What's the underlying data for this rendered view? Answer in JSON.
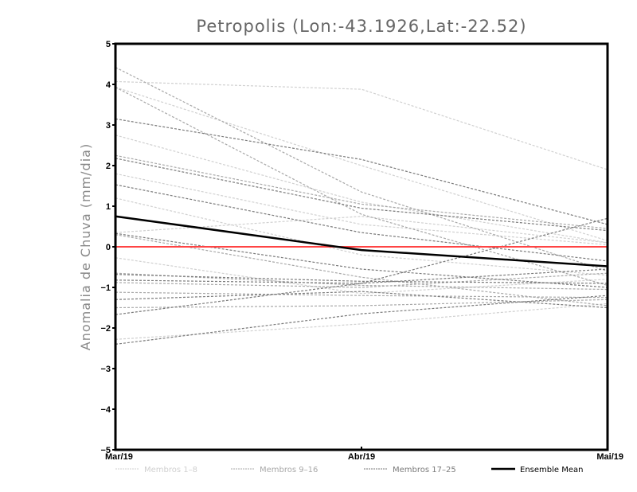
{
  "chart_data": {
    "type": "line",
    "title": "Petropolis (Lon:-43.1926,Lat:-22.52)",
    "xlabel": "",
    "ylabel": "Anomalia de Chuva (mm/dia)",
    "categories": [
      "Mar/19",
      "Abr/19",
      "Mai/19"
    ],
    "ylim": [
      -5,
      5
    ],
    "yticks": [
      5,
      4,
      3,
      2,
      1,
      0,
      -1,
      -2,
      -3,
      -4,
      -5
    ],
    "ytick_labels": [
      "5",
      "4",
      "3",
      "2",
      "1",
      "0",
      "−1",
      "−2",
      "−3",
      "−4",
      "−5"
    ],
    "zero_line_color": "#ff4444",
    "groups": [
      {
        "name": "Membros 1–8",
        "color": "#d0d0d0"
      },
      {
        "name": "Membros 9–16",
        "color": "#a8a8a8"
      },
      {
        "name": "Membros 17–25",
        "color": "#7a7a7a"
      }
    ],
    "members": [
      {
        "group": 0,
        "values": [
          4.07,
          3.88,
          1.9
        ]
      },
      {
        "group": 0,
        "values": [
          3.93,
          2.0,
          0.15
        ]
      },
      {
        "group": 0,
        "values": [
          2.75,
          1.1,
          0.1
        ]
      },
      {
        "group": 0,
        "values": [
          1.8,
          0.55,
          0.05
        ]
      },
      {
        "group": 0,
        "values": [
          1.2,
          -0.2,
          -0.7
        ]
      },
      {
        "group": 0,
        "values": [
          0.35,
          0.75,
          0.1
        ]
      },
      {
        "group": 0,
        "values": [
          -0.27,
          -1.15,
          -0.8
        ]
      },
      {
        "group": 0,
        "values": [
          -2.28,
          -1.9,
          -1.4
        ]
      },
      {
        "group": 1,
        "values": [
          4.42,
          1.35,
          -0.6
        ]
      },
      {
        "group": 1,
        "values": [
          3.93,
          0.8,
          -0.95
        ]
      },
      {
        "group": 1,
        "values": [
          2.25,
          1.05,
          0.45
        ]
      },
      {
        "group": 1,
        "values": [
          -0.65,
          -0.95,
          -1.05
        ]
      },
      {
        "group": 1,
        "values": [
          -0.88,
          -1.0,
          -0.65
        ]
      },
      {
        "group": 1,
        "values": [
          -1.12,
          -1.2,
          -1.25
        ]
      },
      {
        "group": 1,
        "values": [
          -1.5,
          -1.45,
          -1.3
        ]
      },
      {
        "group": 1,
        "values": [
          0.3,
          -0.75,
          -1.45
        ]
      },
      {
        "group": 2,
        "values": [
          3.15,
          2.15,
          0.55
        ]
      },
      {
        "group": 2,
        "values": [
          2.18,
          0.95,
          0.4
        ]
      },
      {
        "group": 2,
        "values": [
          1.53,
          0.35,
          -0.35
        ]
      },
      {
        "group": 2,
        "values": [
          0.33,
          -0.55,
          -1.0
        ]
      },
      {
        "group": 2,
        "values": [
          -0.68,
          -0.85,
          -0.9
        ]
      },
      {
        "group": 2,
        "values": [
          -0.82,
          -0.9,
          0.7
        ]
      },
      {
        "group": 2,
        "values": [
          -1.3,
          -1.1,
          -1.5
        ]
      },
      {
        "group": 2,
        "values": [
          -1.67,
          -0.9,
          -0.55
        ]
      },
      {
        "group": 2,
        "values": [
          -2.4,
          -1.65,
          -1.2
        ]
      }
    ],
    "ensemble_mean": {
      "name": "Ensemble Mean",
      "color": "#000000",
      "values": [
        0.75,
        -0.08,
        -0.48
      ]
    },
    "legend_placement": "bottom",
    "grid": false
  }
}
